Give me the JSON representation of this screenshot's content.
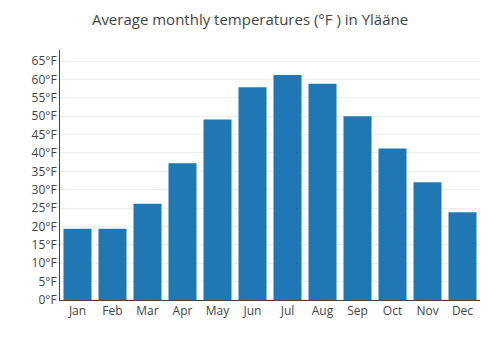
{
  "chart_data": {
    "type": "bar",
    "title": "Average monthly temperatures (°F ) in Ylääne",
    "categories": [
      "Jan",
      "Feb",
      "Mar",
      "Apr",
      "May",
      "Jun",
      "Jul",
      "Aug",
      "Sep",
      "Oct",
      "Nov",
      "Dec"
    ],
    "values": [
      19.4,
      19.4,
      26.2,
      37.2,
      49.1,
      57.9,
      61.2,
      58.8,
      50.0,
      41.2,
      32.0,
      23.9
    ],
    "ylim": [
      0,
      68
    ],
    "yticks": [
      {
        "value": 0,
        "label": "0°F"
      },
      {
        "value": 5,
        "label": "5°F"
      },
      {
        "value": 10,
        "label": "10°F"
      },
      {
        "value": 15,
        "label": "15°F"
      },
      {
        "value": 20,
        "label": "20°F"
      },
      {
        "value": 25,
        "label": "25°F"
      },
      {
        "value": 30,
        "label": "30°F"
      },
      {
        "value": 35,
        "label": "35°F"
      },
      {
        "value": 40,
        "label": "40°F"
      },
      {
        "value": 45,
        "label": "45°F"
      },
      {
        "value": 50,
        "label": "50°F"
      },
      {
        "value": 55,
        "label": "55°F"
      },
      {
        "value": 60,
        "label": "60°F"
      },
      {
        "value": 65,
        "label": "65°F"
      }
    ],
    "grid": true
  }
}
